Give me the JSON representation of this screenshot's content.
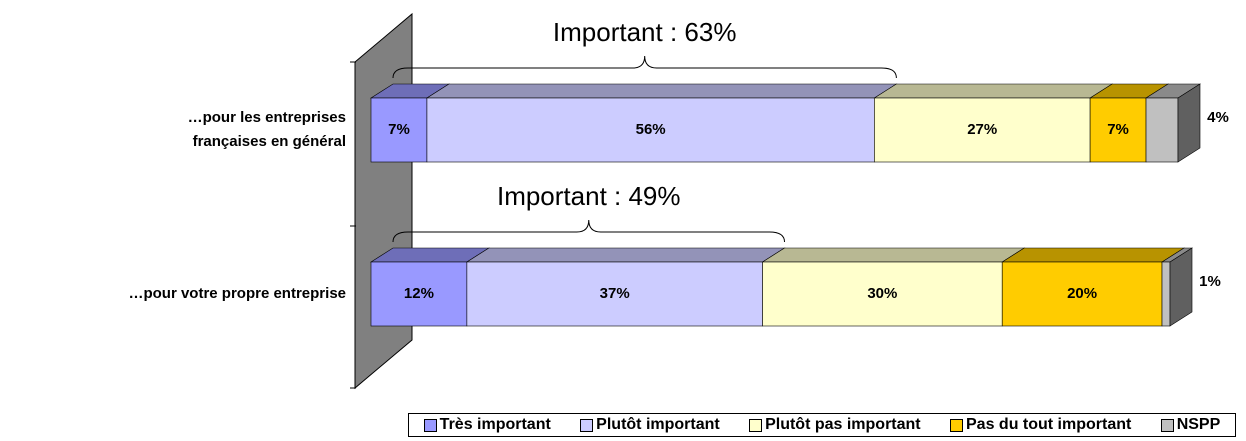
{
  "chart_data": {
    "type": "bar3d_stacked_horizontal",
    "categories": [
      "…pour les entreprises\nfrançaises en général",
      "…pour votre propre entreprise"
    ],
    "series": [
      {
        "name": "Très important",
        "color": "#9999ff",
        "values": [
          7,
          12
        ],
        "value_labels": [
          "7%",
          "12%"
        ]
      },
      {
        "name": "Plutôt important",
        "color": "#ccccff",
        "values": [
          56,
          37
        ],
        "value_labels": [
          "56%",
          "37%"
        ]
      },
      {
        "name": "Plutôt pas important",
        "color": "#ffffcc",
        "values": [
          27,
          30
        ],
        "value_labels": [
          "27%",
          "30%"
        ]
      },
      {
        "name": "Pas du tout important",
        "color": "#ffcc00",
        "values": [
          7,
          20
        ],
        "value_labels": [
          "7%",
          "20%"
        ]
      },
      {
        "name": "NSPP",
        "color": "#c0c0c0",
        "values": [
          4,
          1
        ],
        "value_labels": [
          "4%",
          "1%"
        ]
      }
    ],
    "annotations": [
      "Important : 63%",
      "Important : 49%"
    ]
  }
}
